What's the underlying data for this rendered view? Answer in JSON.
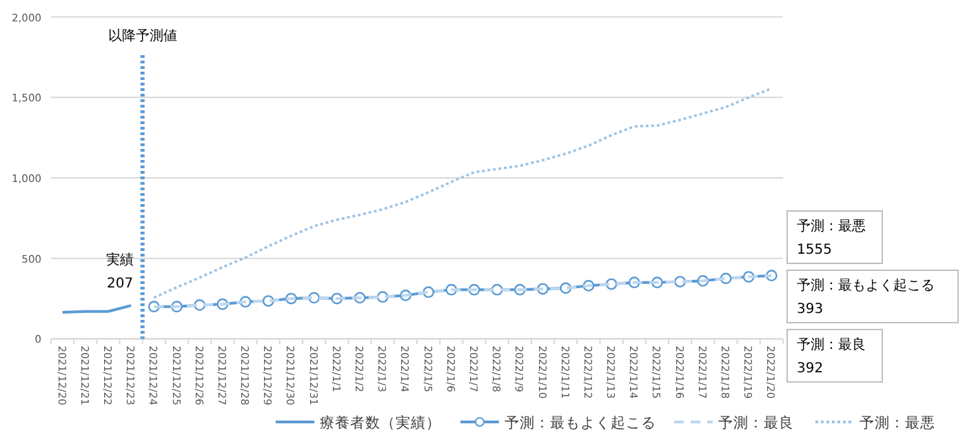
{
  "chart_data": {
    "type": "line",
    "categories": [
      "2021/12/20",
      "2021/12/21",
      "2021/12/22",
      "2021/12/23",
      "2021/12/24",
      "2021/12/25",
      "2021/12/26",
      "2021/12/27",
      "2021/12/28",
      "2021/12/29",
      "2021/12/30",
      "2021/12/31",
      "2022/1/1",
      "2022/1/2",
      "2022/1/3",
      "2022/1/4",
      "2022/1/5",
      "2022/1/6",
      "2022/1/7",
      "2022/1/8",
      "2022/1/9",
      "2022/1/10",
      "2022/1/11",
      "2022/1/12",
      "2022/1/13",
      "2022/1/14",
      "2022/1/15",
      "2022/1/16",
      "2022/1/17",
      "2022/1/18",
      "2022/1/19",
      "2022/1/20"
    ],
    "series": [
      {
        "name": "療養者数（実績）",
        "color": "#5b9bd5",
        "line_style": "solid",
        "marker": "none",
        "values": [
          165,
          170,
          170,
          207,
          null,
          null,
          null,
          null,
          null,
          null,
          null,
          null,
          null,
          null,
          null,
          null,
          null,
          null,
          null,
          null,
          null,
          null,
          null,
          null,
          null,
          null,
          null,
          null,
          null,
          null,
          null,
          null
        ]
      },
      {
        "name": "予測：最もよく起こる",
        "color": "#5b9bd5",
        "line_style": "solid",
        "marker": "circle",
        "values": [
          null,
          null,
          null,
          null,
          200,
          200,
          210,
          215,
          230,
          235,
          250,
          255,
          250,
          255,
          260,
          270,
          290,
          305,
          305,
          305,
          305,
          310,
          315,
          330,
          340,
          350,
          350,
          355,
          360,
          375,
          385,
          393
        ]
      },
      {
        "name": "予測：最良",
        "color": "#bdd7ee",
        "line_style": "dashed",
        "marker": "none",
        "values": [
          null,
          null,
          null,
          null,
          200,
          200,
          210,
          215,
          230,
          235,
          250,
          255,
          250,
          255,
          260,
          270,
          290,
          305,
          305,
          305,
          305,
          310,
          315,
          330,
          340,
          350,
          350,
          355,
          360,
          375,
          385,
          392
        ]
      },
      {
        "name": "予測：最悪",
        "color": "#9dc3e6",
        "line_style": "dotted",
        "marker": "none",
        "values": [
          null,
          null,
          null,
          null,
          255,
          320,
          380,
          445,
          505,
          575,
          640,
          700,
          740,
          770,
          805,
          850,
          910,
          975,
          1035,
          1055,
          1075,
          1110,
          1150,
          1200,
          1265,
          1320,
          1325,
          1360,
          1400,
          1440,
          1500,
          1555
        ]
      }
    ],
    "ylim": [
      0,
      2000
    ],
    "yticks": [
      {
        "value": 0,
        "label": "0"
      },
      {
        "value": 500,
        "label": "500"
      },
      {
        "value": 1000,
        "label": "1,000"
      },
      {
        "value": 1500,
        "label": "1,500"
      },
      {
        "value": 2000,
        "label": "2,000"
      }
    ],
    "grid": "y",
    "legend": "bottom",
    "ref_lines": [
      {
        "axis": "x",
        "value": "2021/12/24",
        "label": "以降予測値",
        "color": "#5b9bd5",
        "line_style": "dotted"
      }
    ],
    "annotations": [
      {
        "text": "実績\n207",
        "x": "2021/12/23",
        "y": 207
      },
      "予測：最悪\n1555",
      "予測：最もよく起こる\n393",
      "予測：最良\n392"
    ]
  }
}
